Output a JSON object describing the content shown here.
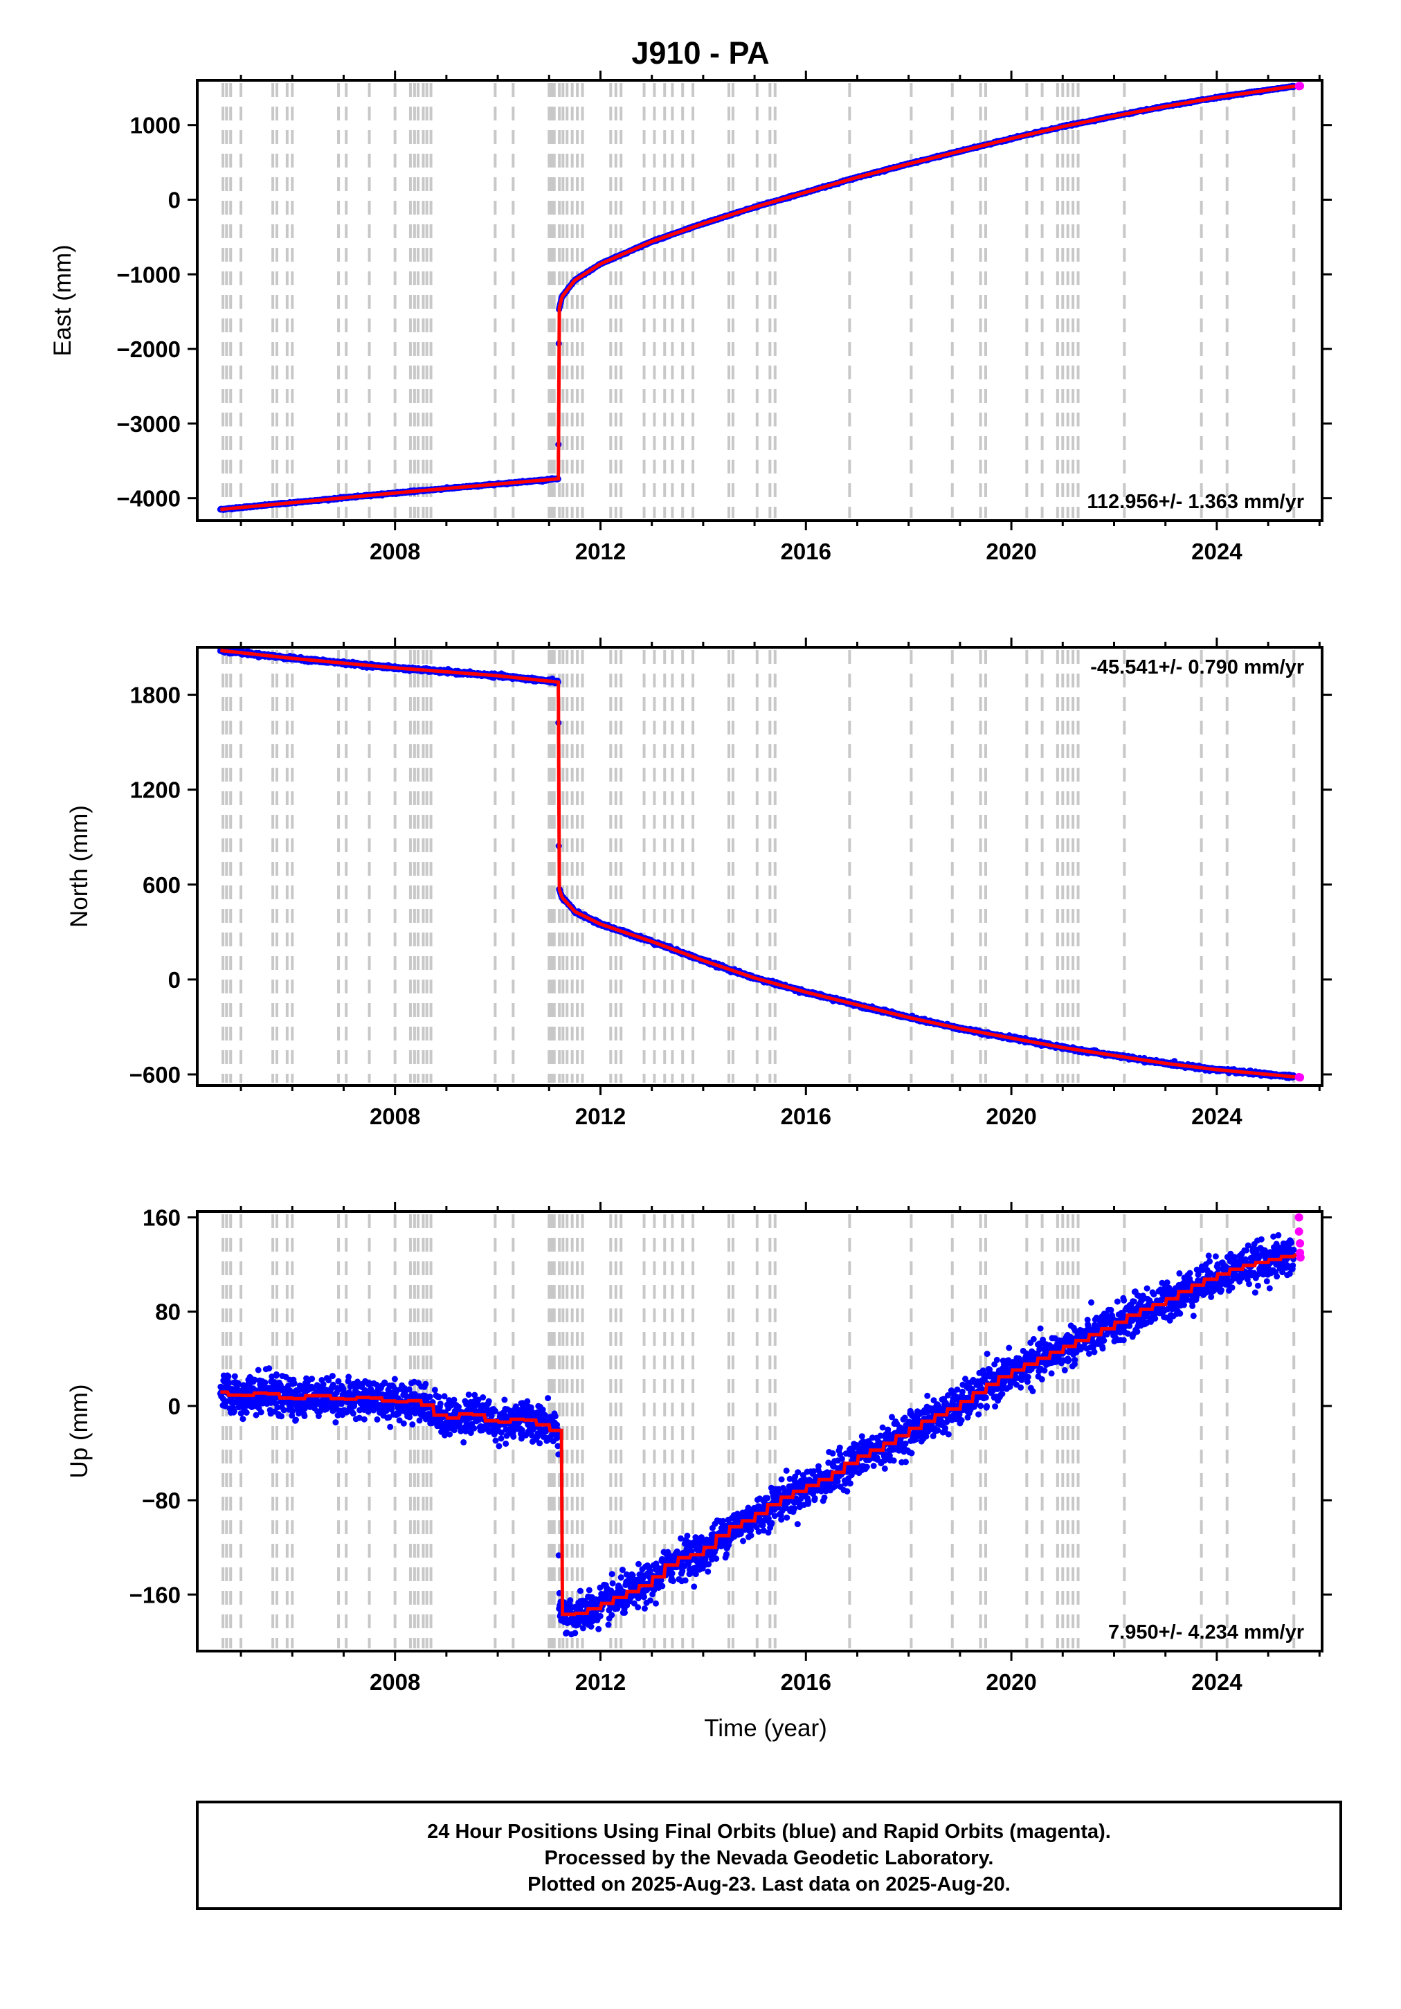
{
  "title": "J910 - PA",
  "xlabel": "Time (year)",
  "footer": {
    "line1": "24 Hour Positions Using Final Orbits (blue) and Rapid Orbits (magenta).",
    "line2": "Processed by the Nevada Geodetic Laboratory.",
    "line3": "Plotted on 2025-Aug-23. Last data on 2025-Aug-20."
  },
  "colors": {
    "final_orbits": "#0000ff",
    "rapid_orbits": "#ff00ff",
    "model": "#ff0000",
    "event_lines": "#c8c8c8"
  },
  "chart_data": [
    {
      "type": "scatter",
      "ylabel": "East (mm)",
      "rate_label": "112.956+/- 1.363 mm/yr",
      "xlim": [
        2004.15,
        2026.05
      ],
      "ylim": [
        -4300,
        1600
      ],
      "x_ticks": [
        2008,
        2012,
        2016,
        2020,
        2024
      ],
      "y_ticks": [
        -4000,
        -3000,
        -2000,
        -1000,
        0,
        1000
      ],
      "grid": false,
      "noise": 5,
      "series": [
        {
          "name": "Final Orbits",
          "role": "final",
          "points": [
            [
              2004.6,
              -4150
            ],
            [
              2006.0,
              -4060
            ],
            [
              2008.0,
              -3930
            ],
            [
              2010.0,
              -3810
            ],
            [
              2011.18,
              -3740
            ],
            [
              2011.19,
              -1480
            ],
            [
              2011.25,
              -1300
            ],
            [
              2011.5,
              -1080
            ],
            [
              2012.0,
              -860
            ],
            [
              2013.0,
              -560
            ],
            [
              2014.0,
              -320
            ],
            [
              2015.0,
              -100
            ],
            [
              2016.0,
              100
            ],
            [
              2017.0,
              300
            ],
            [
              2018.0,
              480
            ],
            [
              2019.0,
              650
            ],
            [
              2020.0,
              820
            ],
            [
              2021.0,
              980
            ],
            [
              2022.0,
              1120
            ],
            [
              2023.0,
              1250
            ],
            [
              2024.0,
              1370
            ],
            [
              2025.5,
              1520
            ]
          ]
        },
        {
          "name": "Rapid Orbits",
          "role": "rapid",
          "points": [
            [
              2025.6,
              1522
            ],
            [
              2025.62,
              1524
            ]
          ]
        }
      ]
    },
    {
      "type": "scatter",
      "ylabel": "North (mm)",
      "rate_label": "-45.541+/- 0.790 mm/yr",
      "xlim": [
        2004.15,
        2026.05
      ],
      "ylim": [
        -670,
        2100
      ],
      "x_ticks": [
        2008,
        2012,
        2016,
        2020,
        2024
      ],
      "y_ticks": [
        -600,
        0,
        600,
        1200,
        1800
      ],
      "grid": false,
      "noise": 5,
      "series": [
        {
          "name": "Final Orbits",
          "role": "final",
          "points": [
            [
              2004.6,
              2080
            ],
            [
              2006.0,
              2030
            ],
            [
              2008.0,
              1970
            ],
            [
              2010.0,
              1920
            ],
            [
              2011.18,
              1880
            ],
            [
              2011.19,
              580
            ],
            [
              2011.25,
              520
            ],
            [
              2011.5,
              430
            ],
            [
              2012.0,
              350
            ],
            [
              2013.0,
              240
            ],
            [
              2014.0,
              120
            ],
            [
              2015.0,
              10
            ],
            [
              2016.0,
              -80
            ],
            [
              2017.0,
              -160
            ],
            [
              2018.0,
              -240
            ],
            [
              2019.0,
              -310
            ],
            [
              2020.0,
              -370
            ],
            [
              2021.0,
              -430
            ],
            [
              2022.0,
              -480
            ],
            [
              2023.0,
              -530
            ],
            [
              2024.0,
              -570
            ],
            [
              2025.5,
              -615
            ]
          ]
        },
        {
          "name": "Rapid Orbits",
          "role": "rapid",
          "points": [
            [
              2025.6,
              -617
            ],
            [
              2025.62,
              -619
            ]
          ]
        }
      ]
    },
    {
      "type": "scatter",
      "ylabel": "Up (mm)",
      "rate_label": "7.950+/- 4.234 mm/yr",
      "xlim": [
        2004.15,
        2026.05
      ],
      "ylim": [
        -208,
        165
      ],
      "x_ticks": [
        2008,
        2012,
        2016,
        2020,
        2024
      ],
      "y_ticks": [
        -160,
        -80,
        0,
        80,
        160
      ],
      "grid": false,
      "noise": 8,
      "series": [
        {
          "name": "Final Orbits",
          "role": "final",
          "points": [
            [
              2004.6,
              12
            ],
            [
              2005.0,
              8
            ],
            [
              2005.5,
              12
            ],
            [
              2006.0,
              5
            ],
            [
              2006.5,
              10
            ],
            [
              2007.0,
              5
            ],
            [
              2007.5,
              8
            ],
            [
              2008.0,
              3
            ],
            [
              2008.5,
              5
            ],
            [
              2009.0,
              -12
            ],
            [
              2009.5,
              -5
            ],
            [
              2010.0,
              -15
            ],
            [
              2010.5,
              -10
            ],
            [
              2011.0,
              -18
            ],
            [
              2011.18,
              -22
            ],
            [
              2011.19,
              -175
            ],
            [
              2011.5,
              -178
            ],
            [
              2012.0,
              -170
            ],
            [
              2012.5,
              -160
            ],
            [
              2013.0,
              -150
            ],
            [
              2013.5,
              -130
            ],
            [
              2014.0,
              -125
            ],
            [
              2014.5,
              -105
            ],
            [
              2015.0,
              -95
            ],
            [
              2015.5,
              -80
            ],
            [
              2016.0,
              -70
            ],
            [
              2016.5,
              -60
            ],
            [
              2017.0,
              -45
            ],
            [
              2017.5,
              -35
            ],
            [
              2018.0,
              -22
            ],
            [
              2018.5,
              -10
            ],
            [
              2019.0,
              0
            ],
            [
              2019.5,
              15
            ],
            [
              2020.0,
              28
            ],
            [
              2020.5,
              38
            ],
            [
              2021.0,
              48
            ],
            [
              2021.5,
              58
            ],
            [
              2022.0,
              68
            ],
            [
              2022.5,
              80
            ],
            [
              2023.0,
              88
            ],
            [
              2023.5,
              100
            ],
            [
              2024.0,
              110
            ],
            [
              2024.5,
              118
            ],
            [
              2025.5,
              128
            ]
          ]
        },
        {
          "name": "Rapid Orbits",
          "role": "rapid",
          "points": [
            [
              2025.6,
              160
            ],
            [
              2025.6,
              148
            ],
            [
              2025.62,
              138
            ],
            [
              2025.62,
              130
            ],
            [
              2025.63,
              126
            ]
          ]
        }
      ]
    }
  ],
  "event_lines": [
    2004.65,
    2004.72,
    2004.8,
    2005.0,
    2005.62,
    2005.7,
    2005.9,
    2006.0,
    2006.9,
    2007.05,
    2007.5,
    2008.0,
    2008.3,
    2008.38,
    2008.45,
    2008.55,
    2008.62,
    2008.7,
    2009.95,
    2010.3,
    2011.0,
    2011.05,
    2011.1,
    2011.2,
    2011.27,
    2011.35,
    2011.45,
    2011.55,
    2011.65,
    2012.2,
    2012.3,
    2012.4,
    2012.85,
    2013.05,
    2013.25,
    2013.4,
    2013.6,
    2013.8,
    2014.5,
    2014.58,
    2015.05,
    2015.3,
    2015.4,
    2016.85,
    2018.05,
    2018.85,
    2019.4,
    2019.5,
    2020.3,
    2020.6,
    2020.9,
    2021.0,
    2021.1,
    2021.2,
    2021.3,
    2022.2,
    2023.7,
    2024.2,
    2025.5
  ]
}
